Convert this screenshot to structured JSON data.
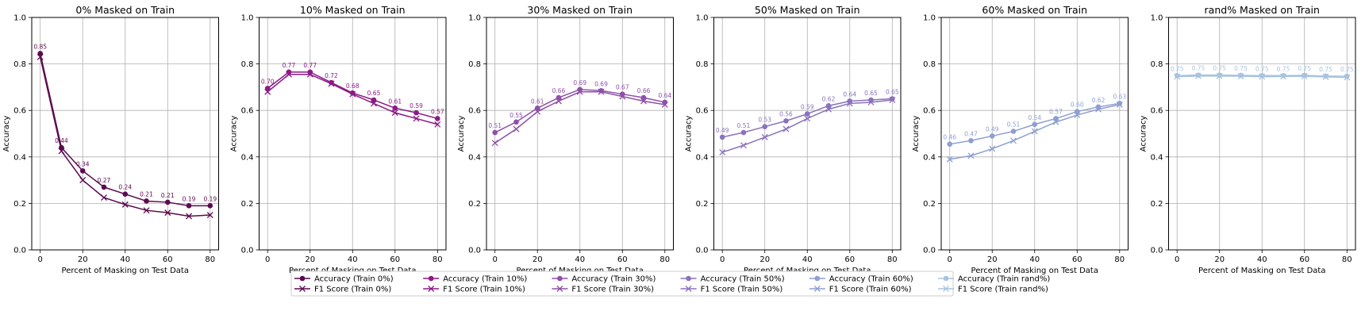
{
  "chart_data": {
    "type": "line",
    "x": [
      0,
      10,
      20,
      30,
      40,
      50,
      60,
      70,
      80
    ],
    "xticks": [
      0,
      20,
      40,
      60,
      80
    ],
    "yticks": [
      "0.0",
      "0.2",
      "0.4",
      "0.6",
      "0.8",
      "1.0"
    ],
    "xlabel": "Percent of Masking on Test Data",
    "ylabel": "Accuracy",
    "xlim": [
      -4,
      84
    ],
    "ylim": [
      0,
      1
    ],
    "grid": true,
    "legend_position": "bottom-center",
    "panels": [
      {
        "title": "0% Masked on Train",
        "color": "#5c0a4d",
        "accuracy_name": "Accuracy (Train 0%)",
        "f1_name": "F1 Score (Train 0%)",
        "accuracy": [
          0.845,
          0.44,
          0.34,
          0.27,
          0.24,
          0.21,
          0.205,
          0.19,
          0.19
        ],
        "f1": [
          0.83,
          0.425,
          0.3,
          0.225,
          0.195,
          0.17,
          0.16,
          0.145,
          0.15
        ],
        "labels": [
          "0.85",
          "0.44",
          "0.34",
          "0.27",
          "0.24",
          "0.21",
          "0.21",
          "0.19",
          "0.19"
        ]
      },
      {
        "title": "10% Masked on Train",
        "color": "#8c1a86",
        "accuracy_name": "Accuracy (Train 10%)",
        "f1_name": "F1 Score (Train 10%)",
        "accuracy": [
          0.695,
          0.765,
          0.765,
          0.72,
          0.675,
          0.645,
          0.61,
          0.59,
          0.565
        ],
        "f1": [
          0.68,
          0.755,
          0.755,
          0.715,
          0.67,
          0.63,
          0.59,
          0.565,
          0.54
        ],
        "labels": [
          "0.70",
          "0.77",
          "0.77",
          "0.72",
          "0.68",
          "0.65",
          "0.61",
          "0.59",
          "0.57"
        ]
      },
      {
        "title": "30% Masked on Train",
        "color": "#8e50a8",
        "accuracy_name": "Accuracy (Train 30%)",
        "f1_name": "F1 Score (Train 30%)",
        "accuracy": [
          0.505,
          0.55,
          0.61,
          0.655,
          0.69,
          0.685,
          0.67,
          0.655,
          0.635
        ],
        "f1": [
          0.46,
          0.52,
          0.595,
          0.64,
          0.68,
          0.68,
          0.66,
          0.64,
          0.625
        ],
        "labels": [
          "0.51",
          "0.55",
          "0.61",
          "0.66",
          "0.69",
          "0.69",
          "0.67",
          "0.66",
          "0.64"
        ]
      },
      {
        "title": "50% Masked on Train",
        "color": "#8b72bd",
        "accuracy_name": "Accuracy (Train 50%)",
        "f1_name": "F1 Score (Train 50%)",
        "accuracy": [
          0.485,
          0.505,
          0.53,
          0.555,
          0.585,
          0.62,
          0.64,
          0.645,
          0.65
        ],
        "f1": [
          0.42,
          0.45,
          0.485,
          0.52,
          0.565,
          0.605,
          0.63,
          0.635,
          0.645
        ],
        "labels": [
          "0.49",
          "0.51",
          "0.53",
          "0.56",
          "0.59",
          "0.62",
          "0.64",
          "0.65",
          "0.65"
        ]
      },
      {
        "title": "60% Masked on Train",
        "color": "#8e9fd1",
        "accuracy_name": "Accuracy (Train 60%)",
        "f1_name": "F1 Score (Train 60%)",
        "accuracy": [
          0.455,
          0.47,
          0.49,
          0.51,
          0.54,
          0.565,
          0.595,
          0.615,
          0.63
        ],
        "f1": [
          0.39,
          0.405,
          0.435,
          0.47,
          0.51,
          0.55,
          0.58,
          0.605,
          0.625
        ],
        "labels": [
          "0.46",
          "0.47",
          "0.49",
          "0.51",
          "0.54",
          "0.57",
          "0.60",
          "0.62",
          "0.63"
        ]
      },
      {
        "title": "rand% Masked on Train",
        "color": "#a9c3de",
        "accuracy_name": "Accuracy (Train rand%)",
        "f1_name": "F1 Score (Train rand%)",
        "accuracy": [
          0.75,
          0.752,
          0.752,
          0.751,
          0.75,
          0.75,
          0.751,
          0.748,
          0.747
        ],
        "f1": [
          0.745,
          0.748,
          0.748,
          0.747,
          0.745,
          0.746,
          0.747,
          0.744,
          0.742
        ],
        "labels": [
          "0.75",
          "0.75",
          "0.75",
          "0.75",
          "0.75",
          "0.75",
          "0.75",
          "0.75",
          "0.75"
        ]
      }
    ]
  }
}
